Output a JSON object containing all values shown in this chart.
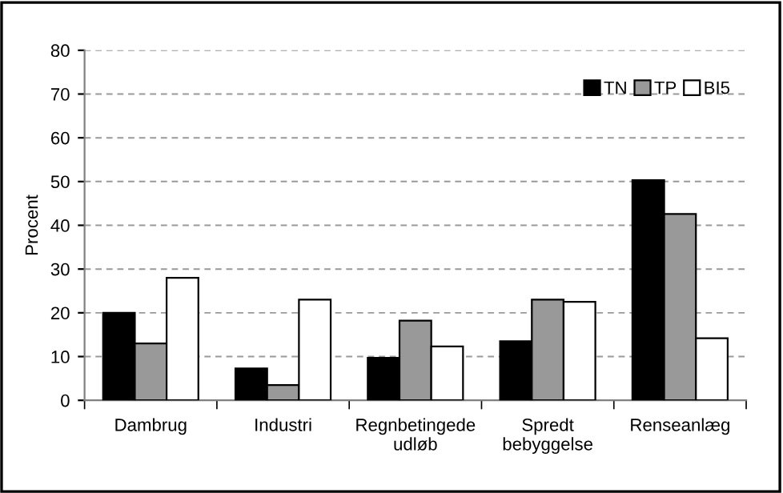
{
  "chart_data": {
    "type": "bar",
    "ylabel": "Procent",
    "categories": [
      "Dambrug",
      "Industri",
      "Regnbetingede\nudløb",
      "Spredt\nbebyggelse",
      "Renseanlæg"
    ],
    "series": [
      {
        "name": "TN",
        "color": "#000000",
        "values": [
          20,
          7.3,
          9.7,
          13.5,
          50.3
        ]
      },
      {
        "name": "TP",
        "color": "#999999",
        "values": [
          13,
          3.5,
          18.2,
          23,
          42.6
        ]
      },
      {
        "name": "BI5",
        "color": "#ffffff",
        "values": [
          28,
          23,
          12.3,
          22.5,
          14.2
        ]
      }
    ],
    "ylim": [
      0,
      80
    ],
    "yticks": [
      0,
      10,
      20,
      30,
      40,
      50,
      60,
      70,
      80
    ],
    "grid": "y",
    "legend": "top right"
  }
}
